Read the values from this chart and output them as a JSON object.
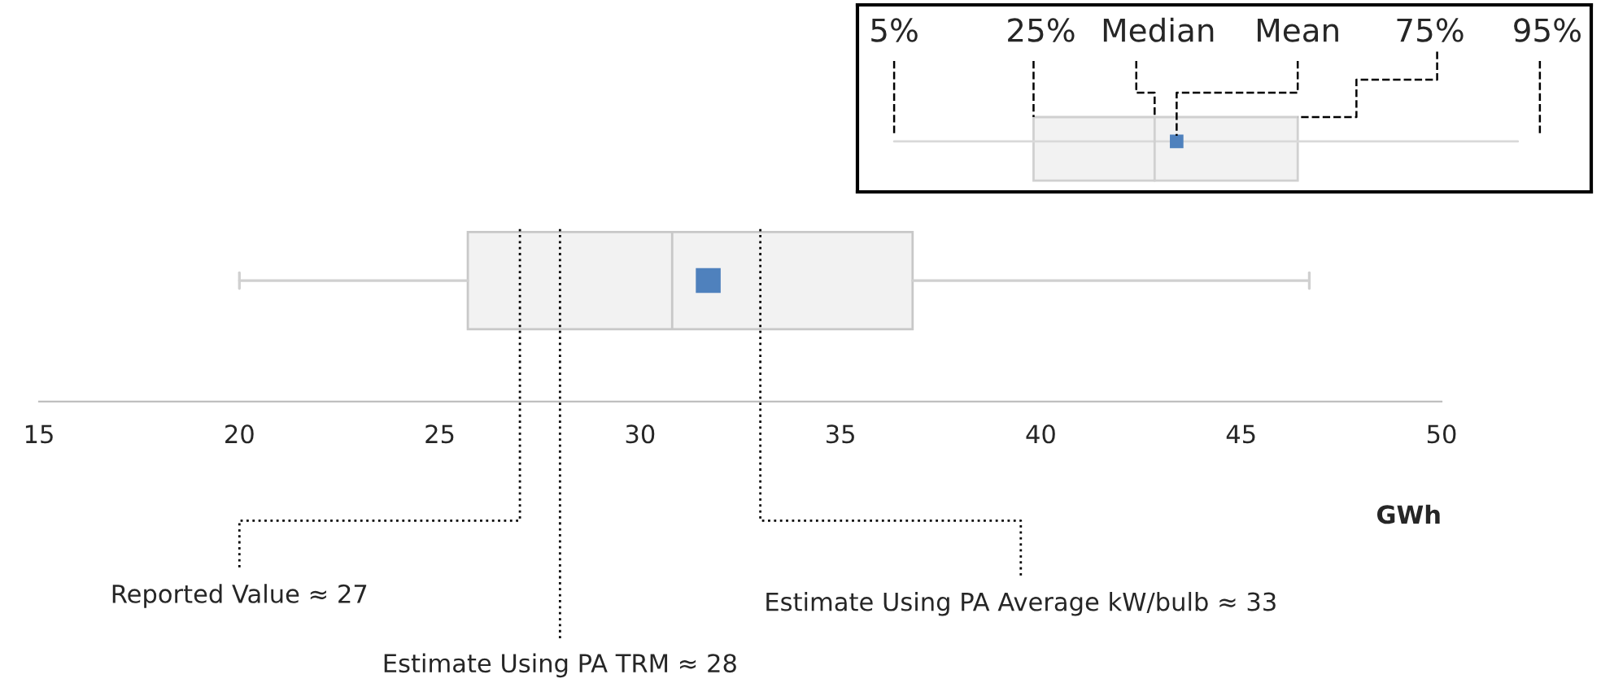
{
  "chart_data": {
    "type": "box",
    "categories": [
      null
    ],
    "boxes": [
      {
        "low": 20,
        "q1": 25.7,
        "median": 30.8,
        "q3": 36.8,
        "high": 46.7,
        "mean": 31.7
      }
    ],
    "orientation": "horizontal",
    "color": "#f2f2f2",
    "xlabel": "GWh",
    "xlim": [
      15,
      50
    ],
    "xticks": [
      15,
      20,
      25,
      30,
      35,
      40,
      45,
      50
    ],
    "ref_lines": [
      {
        "axis": "x",
        "value": 27,
        "label": "Reported Value ≈ 27",
        "line_style": "dotted",
        "color": "#000000"
      },
      {
        "axis": "x",
        "value": 28,
        "label": "Estimate Using PA TRM ≈ 28",
        "line_style": "dotted",
        "color": "#000000"
      },
      {
        "axis": "x",
        "value": 33,
        "label": "Estimate Using PA Average kW/bulb ≈ 33",
        "line_style": "dotted",
        "color": "#000000"
      }
    ],
    "annotations": [
      "5%",
      "25%",
      "Median",
      "Mean",
      "75%",
      "95%"
    ],
    "grid": false
  }
}
